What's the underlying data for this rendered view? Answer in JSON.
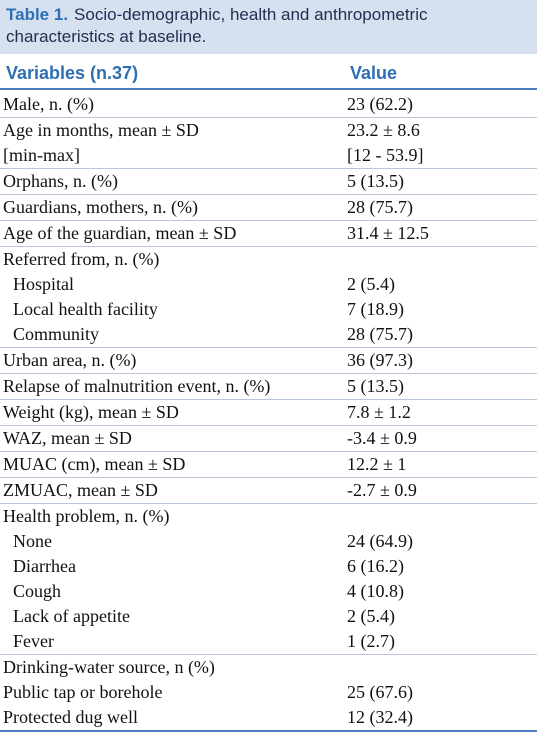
{
  "caption": {
    "label": "Table 1.",
    "text": "Socio-demographic, health and anthropometric characteristics at baseline."
  },
  "header": {
    "variables": "Variables (n.37)",
    "value": "Value"
  },
  "groups": [
    [
      {
        "label": "Male, n. (%)",
        "value": "23 (62.2)"
      }
    ],
    [
      {
        "label": "Age in months, mean ± SD",
        "value": "23.2 ± 8.6"
      },
      {
        "label": "[min-max]",
        "value": "[12 - 53.9]"
      }
    ],
    [
      {
        "label": "Orphans, n. (%)",
        "value": "5 (13.5)"
      }
    ],
    [
      {
        "label": "Guardians, mothers, n. (%)",
        "value": "28 (75.7)"
      }
    ],
    [
      {
        "label": "Age of the guardian, mean ± SD",
        "value": "31.4 ± 12.5"
      }
    ],
    [
      {
        "label": "Referred from, n. (%)",
        "value": ""
      },
      {
        "label": "Hospital",
        "value": "2 (5.4)",
        "indent": true
      },
      {
        "label": "Local health facility",
        "value": "7 (18.9)",
        "indent": true
      },
      {
        "label": "Community",
        "value": "28 (75.7)",
        "indent": true
      }
    ],
    [
      {
        "label": "Urban area, n. (%)",
        "value": "36 (97.3)"
      }
    ],
    [
      {
        "label": "Relapse of malnutrition event, n. (%)",
        "value": "5 (13.5)"
      }
    ],
    [
      {
        "label": "Weight (kg), mean ± SD",
        "value": "7.8 ± 1.2"
      }
    ],
    [
      {
        "label": "WAZ, mean ± SD",
        "value": "-3.4 ± 0.9"
      }
    ],
    [
      {
        "label": "MUAC (cm), mean ± SD",
        "value": "12.2 ± 1"
      }
    ],
    [
      {
        "label": "ZMUAC, mean ± SD",
        "value": "-2.7 ± 0.9"
      }
    ],
    [
      {
        "label": "Health problem, n. (%)",
        "value": ""
      },
      {
        "label": "None",
        "value": "24 (64.9)",
        "indent": true
      },
      {
        "label": "Diarrhea",
        "value": "6 (16.2)",
        "indent": true
      },
      {
        "label": "Cough",
        "value": "4 (10.8)",
        "indent": true
      },
      {
        "label": "Lack of appetite",
        "value": "2 (5.4)",
        "indent": true
      },
      {
        "label": "Fever",
        "value": "1 (2.7)",
        "indent": true
      }
    ],
    [
      {
        "label": "Drinking-water source, n (%)",
        "value": ""
      },
      {
        "label": "Public tap or borehole",
        "value": "25 (67.6)"
      },
      {
        "label": "Protected dug well",
        "value": "12 (32.4)"
      }
    ]
  ]
}
